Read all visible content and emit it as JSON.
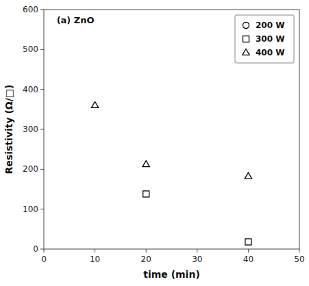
{
  "chart_data": {
    "type": "scatter",
    "title": "(a) ZnO",
    "x_label": "time (min)",
    "y_label": "Resistivity (Ω/□)",
    "xlim": [
      0,
      50
    ],
    "ylim": [
      0,
      600
    ],
    "xticks": [
      0,
      10,
      20,
      30,
      40,
      50
    ],
    "yticks": [
      0,
      100,
      200,
      300,
      400,
      500,
      600
    ],
    "grid": false,
    "legend": "upper right",
    "series": [
      {
        "name": "200 W",
        "color": "black",
        "marker": "circle",
        "x": [],
        "values": []
      },
      {
        "name": "300 W",
        "color": "black",
        "marker": "square",
        "x": [
          20,
          40
        ],
        "values": [
          138,
          18
        ]
      },
      {
        "name": "400 W",
        "color": "black",
        "marker": "triangle",
        "x": [
          10,
          20,
          40
        ],
        "values": [
          360,
          212,
          182
        ]
      }
    ]
  }
}
